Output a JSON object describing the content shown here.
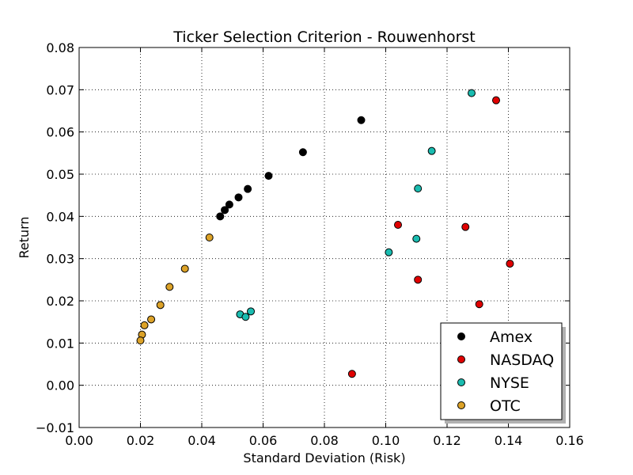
{
  "chart_data": {
    "type": "scatter",
    "title": "Ticker Selection Criterion - Rouwenhorst",
    "xlabel": "Standard Deviation (Risk)",
    "ylabel": "Return",
    "xlim": [
      0.0,
      0.16
    ],
    "ylim": [
      -0.01,
      0.08
    ],
    "xticks": [
      0.0,
      0.02,
      0.04,
      0.06,
      0.08,
      0.1,
      0.12,
      0.14,
      0.16
    ],
    "xtick_labels": [
      "0.00",
      "0.02",
      "0.04",
      "0.06",
      "0.08",
      "0.10",
      "0.12",
      "0.14",
      "0.16"
    ],
    "yticks": [
      -0.01,
      0.0,
      0.01,
      0.02,
      0.03,
      0.04,
      0.05,
      0.06,
      0.07,
      0.08
    ],
    "ytick_labels": [
      "−0.01",
      "0.00",
      "0.01",
      "0.02",
      "0.03",
      "0.04",
      "0.05",
      "0.06",
      "0.07",
      "0.08"
    ],
    "grid": true,
    "legend_position": "bottom-right",
    "series": [
      {
        "name": "Amex",
        "color": "#000000",
        "points": [
          [
            0.046,
            0.04
          ],
          [
            0.0475,
            0.0415
          ],
          [
            0.049,
            0.0428
          ],
          [
            0.052,
            0.0445
          ],
          [
            0.055,
            0.0465
          ],
          [
            0.0618,
            0.0496
          ],
          [
            0.073,
            0.0552
          ],
          [
            0.092,
            0.0628
          ]
        ]
      },
      {
        "name": "NASDAQ",
        "color": "#e00000",
        "points": [
          [
            0.136,
            0.0675
          ],
          [
            0.104,
            0.038
          ],
          [
            0.126,
            0.0375
          ],
          [
            0.1405,
            0.0288
          ],
          [
            0.1105,
            0.025
          ],
          [
            0.1305,
            0.0192
          ],
          [
            0.089,
            0.0027
          ]
        ]
      },
      {
        "name": "NYSE",
        "color": "#1abcb0",
        "points": [
          [
            0.128,
            0.0692
          ],
          [
            0.115,
            0.0555
          ],
          [
            0.1105,
            0.0466
          ],
          [
            0.11,
            0.0347
          ],
          [
            0.101,
            0.0315
          ],
          [
            0.0525,
            0.0168
          ],
          [
            0.0543,
            0.0162
          ],
          [
            0.056,
            0.0175
          ]
        ]
      },
      {
        "name": "OTC",
        "color": "#dca228",
        "points": [
          [
            0.0425,
            0.035
          ],
          [
            0.0345,
            0.0276
          ],
          [
            0.0295,
            0.0233
          ],
          [
            0.0265,
            0.019
          ],
          [
            0.0235,
            0.0156
          ],
          [
            0.0213,
            0.0142
          ],
          [
            0.0205,
            0.012
          ],
          [
            0.02,
            0.0106
          ]
        ]
      }
    ]
  }
}
